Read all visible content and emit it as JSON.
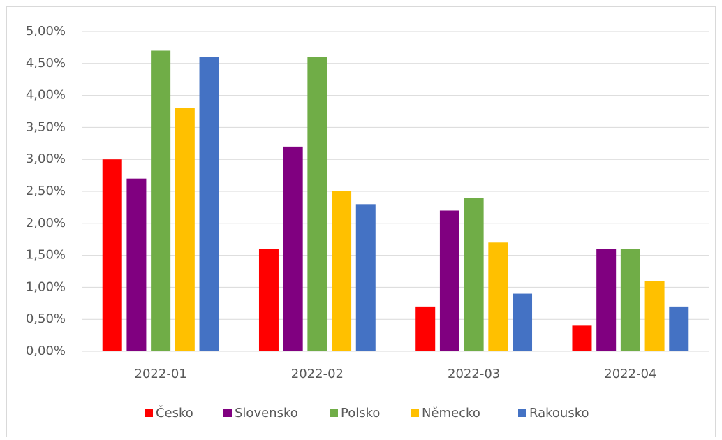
{
  "chart_data": {
    "type": "bar",
    "categories": [
      "2022-01",
      "2022-02",
      "2022-03",
      "2022-04"
    ],
    "series": [
      {
        "name": "Česko",
        "color": "#ff0000",
        "values": [
          3.0,
          1.6,
          0.7,
          0.4
        ]
      },
      {
        "name": "Slovensko",
        "color": "#800080",
        "values": [
          2.7,
          3.2,
          2.2,
          1.6
        ]
      },
      {
        "name": "Polsko",
        "color": "#70ad47",
        "values": [
          4.7,
          4.6,
          2.4,
          1.6
        ]
      },
      {
        "name": "Německo",
        "color": "#ffc000",
        "values": [
          3.8,
          2.5,
          1.7,
          1.1
        ]
      },
      {
        "name": "Rakousko",
        "color": "#4472c4",
        "values": [
          4.6,
          2.3,
          0.9,
          0.7
        ]
      }
    ],
    "ylim": [
      0,
      5
    ],
    "yticks": [
      {
        "value": 0,
        "label": "0,00%"
      },
      {
        "value": 0.5,
        "label": "0,50%"
      },
      {
        "value": 1,
        "label": "1,00%"
      },
      {
        "value": 1.5,
        "label": "1,50%"
      },
      {
        "value": 2,
        "label": "2,00%"
      },
      {
        "value": 2.5,
        "label": "2,50%"
      },
      {
        "value": 3,
        "label": "3,00%"
      },
      {
        "value": 3.5,
        "label": "3,50%"
      },
      {
        "value": 4,
        "label": "4,00%"
      },
      {
        "value": 4.5,
        "label": "4,50%"
      },
      {
        "value": 5,
        "label": "5,00%"
      }
    ],
    "grid": true,
    "legend": "bottom"
  }
}
